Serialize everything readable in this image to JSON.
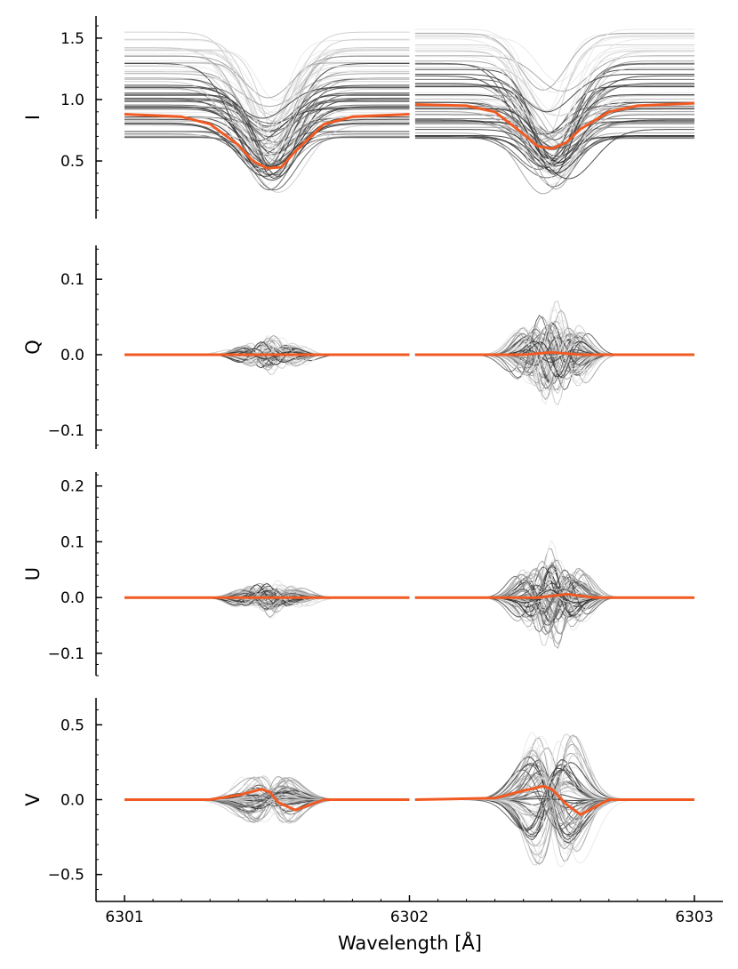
{
  "figure": {
    "xlabel": "Wavelength [Å]",
    "x_tick_labels": [
      "6301",
      "6302",
      "6303"
    ]
  },
  "chart_data": [
    {
      "type": "line",
      "panel": "I",
      "ylabel": "I",
      "xlim": [
        6300.9,
        6303.1
      ],
      "ylim": [
        0.03,
        1.68
      ],
      "y_ticks": [
        0.5,
        1.0,
        1.5
      ],
      "y_tick_labels": [
        "0.5",
        "1.0",
        "1.5"
      ],
      "grid": false,
      "line_windows": [
        [
          6301.0,
          6302.0
        ],
        [
          6302.02,
          6303.0
        ]
      ],
      "line_centers": [
        6301.51,
        6302.5
      ],
      "mean_profile_color": "#f15a22",
      "individual_profile_colors": [
        "#e6e6e6",
        "#c8c8c8",
        "#9a9a9a",
        "#555555",
        "#2e2e2e"
      ],
      "mean_profile_samples": {
        "x": [
          6301.0,
          6301.2,
          6301.3,
          6301.4,
          6301.45,
          6301.5,
          6301.55,
          6301.6,
          6301.7,
          6301.8,
          6302.0,
          6302.02,
          6302.2,
          6302.3,
          6302.4,
          6302.45,
          6302.5,
          6302.55,
          6302.6,
          6302.7,
          6302.8,
          6303.0
        ],
        "y": [
          0.88,
          0.86,
          0.8,
          0.63,
          0.5,
          0.44,
          0.45,
          0.58,
          0.8,
          0.86,
          0.88,
          0.96,
          0.95,
          0.9,
          0.72,
          0.62,
          0.6,
          0.65,
          0.76,
          0.9,
          0.95,
          0.97
        ]
      }
    },
    {
      "type": "line",
      "panel": "Q",
      "ylabel": "Q",
      "xlim": [
        6300.9,
        6303.1
      ],
      "ylim": [
        -0.125,
        0.145
      ],
      "y_ticks": [
        -0.1,
        0.0,
        0.1
      ],
      "y_tick_labels": [
        "−0.1",
        "0.0",
        "0.1"
      ],
      "grid": false,
      "mean_profile_samples": {
        "x": [
          6301.0,
          6302.0,
          6302.02,
          6302.4,
          6302.5,
          6302.6,
          6303.0
        ],
        "y": [
          0.0,
          0.0,
          0.0,
          0.0,
          0.003,
          0.0,
          0.0
        ]
      }
    },
    {
      "type": "line",
      "panel": "U",
      "ylabel": "U",
      "xlim": [
        6300.9,
        6303.1
      ],
      "ylim": [
        -0.14,
        0.225
      ],
      "y_ticks": [
        -0.1,
        0.0,
        0.1,
        0.2
      ],
      "y_tick_labels": [
        "−0.1",
        "0.0",
        "0.1",
        "0.2"
      ],
      "grid": false,
      "mean_profile_samples": {
        "x": [
          6301.0,
          6302.0,
          6302.02,
          6302.45,
          6302.55,
          6302.65,
          6303.0
        ],
        "y": [
          0.0,
          0.0,
          0.0,
          0.0,
          0.006,
          0.0,
          0.0
        ]
      }
    },
    {
      "type": "line",
      "panel": "V",
      "ylabel": "V",
      "xlim": [
        6300.9,
        6303.1
      ],
      "ylim": [
        -0.68,
        0.68
      ],
      "y_ticks": [
        -0.5,
        0.0,
        0.5
      ],
      "y_tick_labels": [
        "−0.5",
        "0.0",
        "0.5"
      ],
      "grid": false,
      "mean_profile_samples": {
        "x": [
          6301.0,
          6301.3,
          6301.4,
          6301.48,
          6301.51,
          6301.54,
          6301.6,
          6301.7,
          6302.0,
          6302.02,
          6302.3,
          6302.4,
          6302.47,
          6302.5,
          6302.55,
          6302.6,
          6302.7,
          6303.0
        ],
        "y": [
          0.0,
          0.0,
          0.03,
          0.07,
          0.05,
          -0.02,
          -0.07,
          0.0,
          0.0,
          0.0,
          0.01,
          0.06,
          0.09,
          0.07,
          -0.03,
          -0.1,
          0.0,
          0.0
        ]
      }
    }
  ]
}
